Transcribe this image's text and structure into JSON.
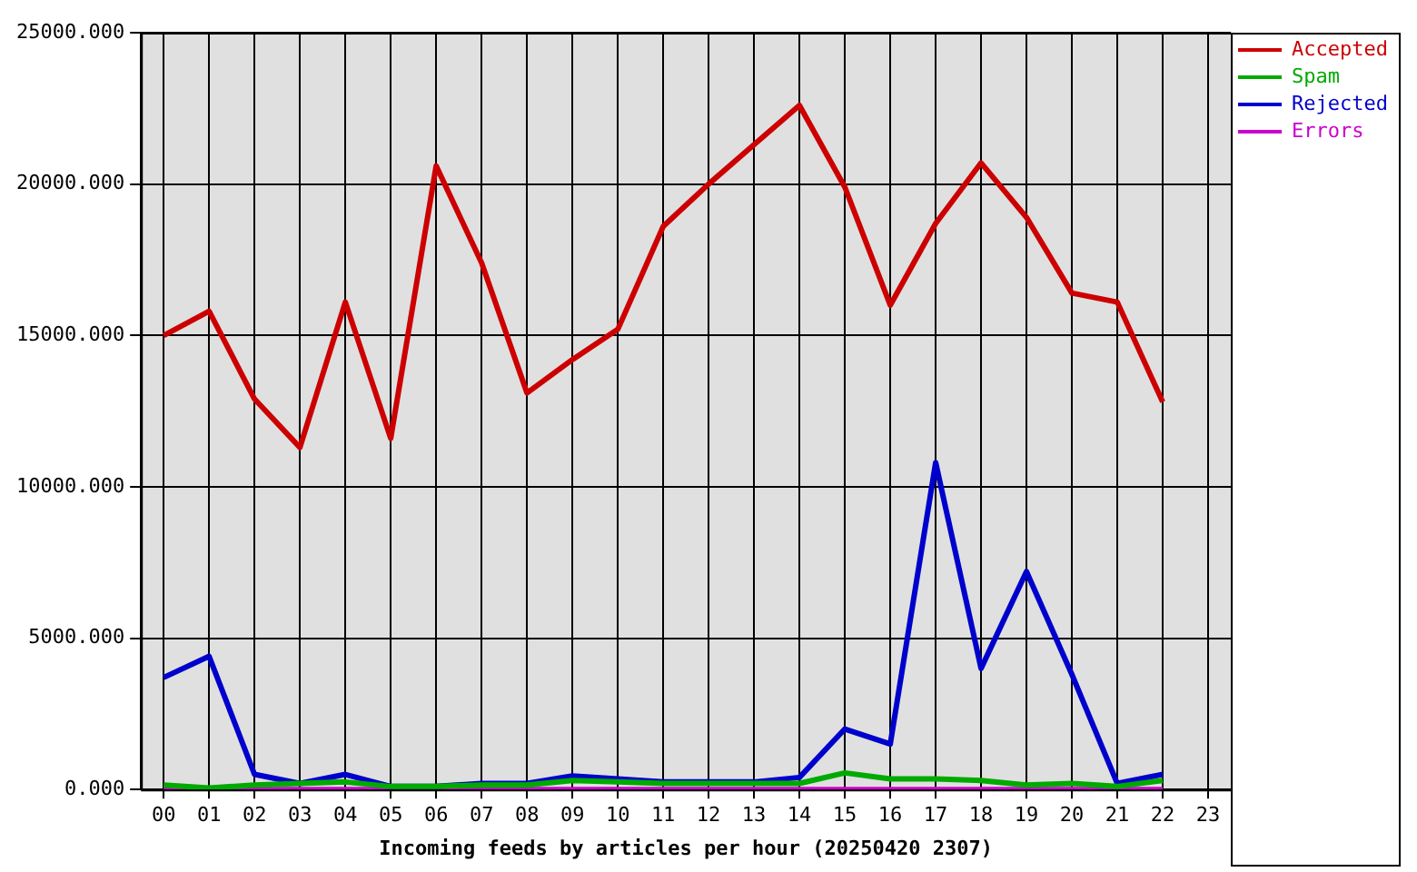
{
  "chart_data": {
    "type": "line",
    "xlabel": "Incoming feeds by articles per hour (20250420 2307)",
    "categories": [
      "00",
      "01",
      "02",
      "03",
      "04",
      "05",
      "06",
      "07",
      "08",
      "09",
      "10",
      "11",
      "12",
      "13",
      "14",
      "15",
      "16",
      "17",
      "18",
      "19",
      "20",
      "21",
      "22",
      "23"
    ],
    "series": [
      {
        "name": "Accepted",
        "color": "#cc0000",
        "values": [
          15000,
          15800,
          12900,
          11300,
          16100,
          11600,
          20600,
          17400,
          13100,
          14200,
          15200,
          18600,
          20000,
          21300,
          22600,
          19900,
          16000,
          18700,
          20700,
          18900,
          16400,
          16100,
          12800,
          null
        ]
      },
      {
        "name": "Spam",
        "color": "#00aa00",
        "values": [
          150,
          50,
          150,
          200,
          250,
          100,
          100,
          150,
          150,
          300,
          250,
          200,
          200,
          200,
          200,
          550,
          350,
          350,
          300,
          150,
          200,
          100,
          300,
          null
        ]
      },
      {
        "name": "Rejected",
        "color": "#0000cc",
        "values": [
          3700,
          4400,
          500,
          200,
          500,
          100,
          100,
          200,
          200,
          450,
          350,
          250,
          250,
          250,
          400,
          2000,
          1500,
          10800,
          4000,
          7200,
          3800,
          200,
          500,
          null
        ]
      },
      {
        "name": "Errors",
        "color": "#cc00cc",
        "values": [
          0,
          0,
          0,
          0,
          0,
          0,
          0,
          0,
          0,
          0,
          0,
          0,
          0,
          0,
          0,
          0,
          0,
          0,
          0,
          0,
          0,
          0,
          0,
          null
        ]
      }
    ],
    "ylim": [
      0,
      25000
    ],
    "yticks": [
      {
        "value": 0,
        "label": "0.000"
      },
      {
        "value": 5000,
        "label": "5000.000"
      },
      {
        "value": 10000,
        "label": "10000.000"
      },
      {
        "value": 15000,
        "label": "15000.000"
      },
      {
        "value": 20000,
        "label": "20000.000"
      },
      {
        "value": 25000,
        "label": "25000.000"
      }
    ],
    "grid": true,
    "legend": "top right",
    "marker": "none",
    "line_style": "solid"
  }
}
